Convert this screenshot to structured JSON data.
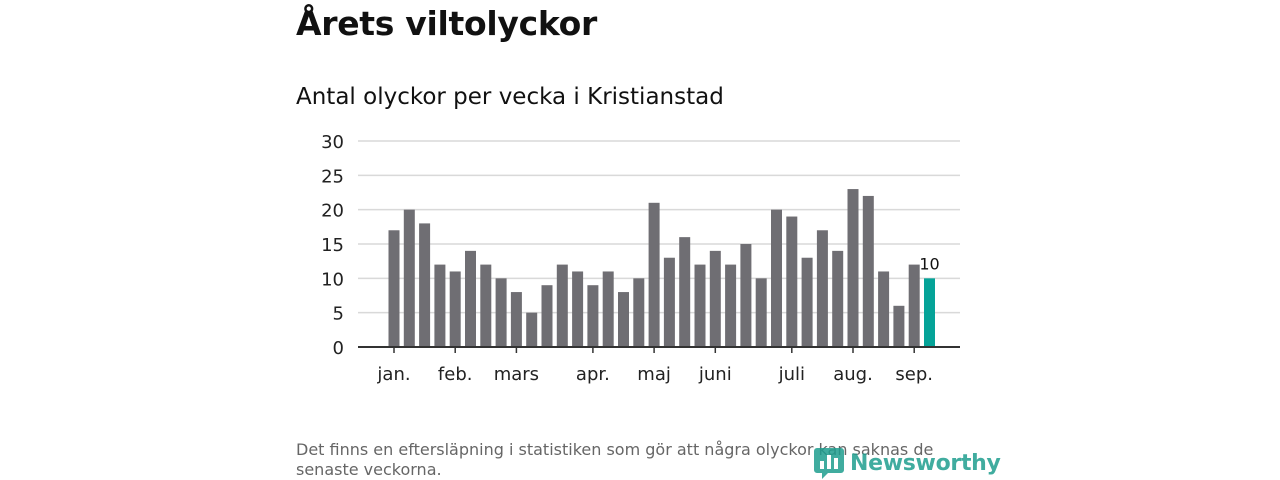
{
  "header": {
    "title": "Årets viltolyckor",
    "subtitle": "Antal olyckor per vecka i Kristianstad"
  },
  "chart_data": {
    "type": "bar",
    "title": "Årets viltolyckor",
    "subtitle": "Antal olyckor per vecka i Kristianstad",
    "xlabel": "",
    "ylabel": "",
    "ylim": [
      0,
      30
    ],
    "yticks": [
      0,
      5,
      10,
      15,
      20,
      25,
      30
    ],
    "grid": true,
    "x_month_labels": [
      {
        "label": "jan.",
        "week": 1
      },
      {
        "label": "feb.",
        "week": 5
      },
      {
        "label": "mars",
        "week": 9
      },
      {
        "label": "apr.",
        "week": 14
      },
      {
        "label": "maj",
        "week": 18
      },
      {
        "label": "juni",
        "week": 22
      },
      {
        "label": "juli",
        "week": 27
      },
      {
        "label": "aug.",
        "week": 31
      },
      {
        "label": "sep.",
        "week": 35
      }
    ],
    "weeks": [
      1,
      2,
      3,
      4,
      5,
      6,
      7,
      8,
      9,
      10,
      11,
      12,
      13,
      14,
      15,
      16,
      17,
      18,
      19,
      20,
      21,
      22,
      23,
      24,
      25,
      26,
      27,
      28,
      29,
      30,
      31,
      32,
      33,
      34,
      35,
      36
    ],
    "values": [
      17,
      20,
      18,
      12,
      11,
      14,
      12,
      10,
      8,
      5,
      9,
      12,
      11,
      9,
      11,
      8,
      10,
      21,
      13,
      16,
      12,
      14,
      12,
      15,
      10,
      20,
      19,
      13,
      17,
      14,
      23,
      22,
      11,
      6,
      12,
      10
    ],
    "highlight_index": 35,
    "highlight_label": "10",
    "colors": {
      "bar": "#6f6e73",
      "highlight": "#05a398",
      "grid": "#d9d9d9",
      "axis": "#333333"
    }
  },
  "footer": {
    "note": "Det finns en eftersläpning i statistiken som gör att några olyckor kan saknas de senaste veckorna.",
    "logo_text": "Newsworthy",
    "logo_color": "#1f9e8f",
    "logo_icon": "bar-chart-logo-icon"
  }
}
